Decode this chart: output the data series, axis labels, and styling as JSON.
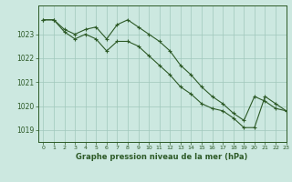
{
  "line1_x": [
    0,
    1,
    2,
    3,
    4,
    5,
    6,
    7,
    8,
    9,
    10,
    11,
    12,
    13,
    14,
    15,
    16,
    17,
    18,
    19,
    20,
    21,
    22,
    23
  ],
  "line1_y": [
    1023.6,
    1023.6,
    1023.2,
    1023.0,
    1023.2,
    1023.3,
    1022.8,
    1023.4,
    1023.6,
    1023.3,
    1023.0,
    1022.7,
    1022.3,
    1021.7,
    1021.3,
    1020.8,
    1020.4,
    1020.1,
    1019.7,
    1019.4,
    1020.4,
    1020.2,
    1019.9,
    1019.8
  ],
  "line2_x": [
    0,
    1,
    2,
    3,
    4,
    5,
    6,
    7,
    8,
    9,
    10,
    11,
    12,
    13,
    14,
    15,
    16,
    17,
    18,
    19,
    20,
    21,
    22,
    23
  ],
  "line2_y": [
    1023.6,
    1023.6,
    1023.1,
    1022.8,
    1023.0,
    1022.8,
    1022.3,
    1022.7,
    1022.7,
    1022.5,
    1022.1,
    1021.7,
    1021.3,
    1020.8,
    1020.5,
    1020.1,
    1019.9,
    1019.8,
    1019.5,
    1019.1,
    1019.1,
    1020.4,
    1020.1,
    1019.8
  ],
  "line_color": "#2d5a27",
  "bg_color": "#cce8e0",
  "grid_color": "#a0c8bc",
  "axis_color": "#2d5a27",
  "xlabel": "Graphe pression niveau de la mer (hPa)",
  "ylim": [
    1018.5,
    1024.2
  ],
  "xlim": [
    -0.5,
    23
  ],
  "yticks": [
    1019,
    1020,
    1021,
    1022,
    1023
  ],
  "xticks": [
    0,
    1,
    2,
    3,
    4,
    5,
    6,
    7,
    8,
    9,
    10,
    11,
    12,
    13,
    14,
    15,
    16,
    17,
    18,
    19,
    20,
    21,
    22,
    23
  ]
}
